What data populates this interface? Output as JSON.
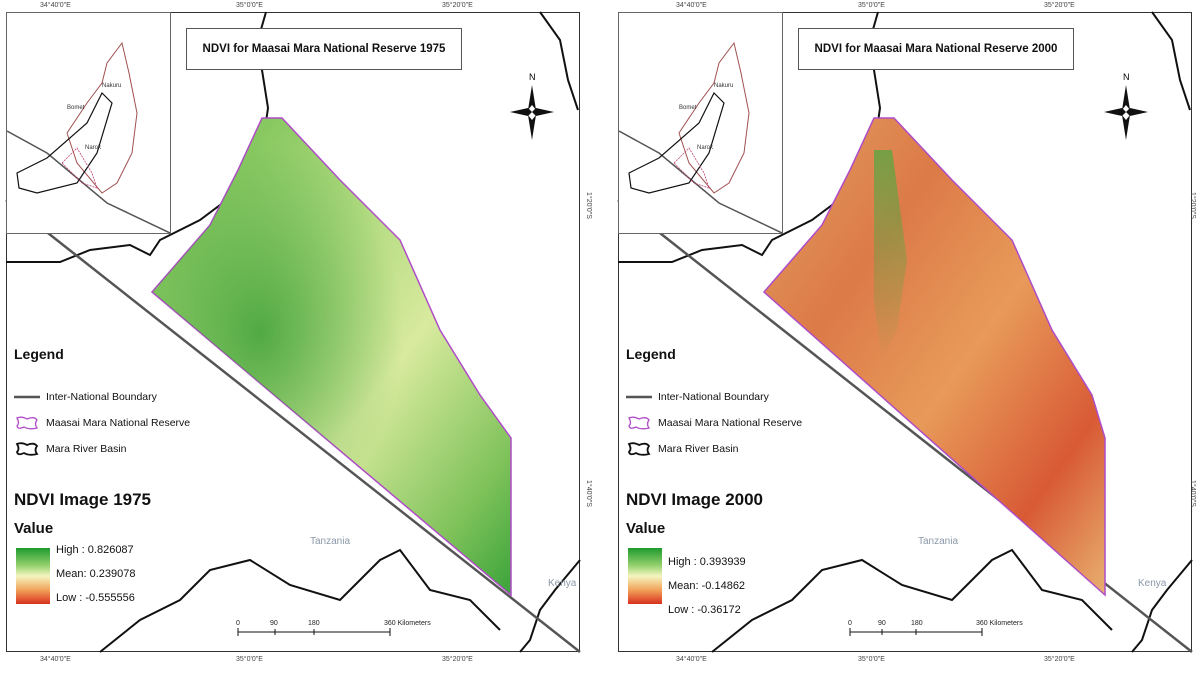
{
  "panels": [
    {
      "id": "left",
      "title": "NDVI for Maasai Mara National Reserve 1975",
      "coords_top": [
        "34°40'0\"E",
        "35°0'0\"E",
        "35°20'0\"E"
      ],
      "coords_bottom": [
        "34°40'0\"E",
        "35°0'0\"E",
        "35°20'0\"E"
      ],
      "coords_right": [
        "1°20'0\"S",
        "1°40'0\"S"
      ],
      "inset_labels": [
        "Nakuru",
        "Bomet",
        "Narok"
      ],
      "north_label": "N",
      "legend": {
        "title": "Legend",
        "items": [
          "Inter-National Boundary",
          "Maasai Mara National Reserve",
          "Mara River Basin"
        ]
      },
      "image_title": "NDVI Image 1975",
      "value_title": "Value",
      "ramp": {
        "high": "High : 0.826087",
        "mean": "Mean: 0.239078",
        "low": "Low : -0.555556"
      },
      "places": [
        "Tanzania",
        "Kenya"
      ],
      "scale": {
        "ticks": [
          "0",
          "90",
          "180",
          "360 Kilometers"
        ]
      },
      "palette": {
        "high": "#1e9a2e",
        "mid": "#eef3b4",
        "low": "#d7301f"
      },
      "dominant": "green"
    },
    {
      "id": "right",
      "title": "NDVI for Maasai Mara National Reserve 2000",
      "coords_top": [
        "34°40'0\"E",
        "35°0'0\"E",
        "35°20'0\"E"
      ],
      "coords_bottom": [
        "34°40'0\"E",
        "35°0'0\"E",
        "35°20'0\"E"
      ],
      "coords_right": [
        "1°20'0\"S",
        "1°40'0\"S"
      ],
      "inset_labels": [
        "Nakuru",
        "Bomet",
        "Narok"
      ],
      "north_label": "N",
      "legend": {
        "title": "Legend",
        "items": [
          "Inter-National Boundary",
          "Maasai Mara National Reserve",
          "Mara River Basin"
        ]
      },
      "image_title": "NDVI Image 2000",
      "value_title": "Value",
      "ramp": {
        "high": "High : 0.393939",
        "mean": "Mean: -0.14862",
        "low": "Low : -0.36172"
      },
      "places": [
        "Tanzania",
        "Kenya"
      ],
      "scale": {
        "ticks": [
          "0",
          "90",
          "180",
          "360 Kilometers"
        ]
      },
      "palette": {
        "high": "#1e9a2e",
        "mid": "#f2d88a",
        "low": "#d7301f"
      },
      "dominant": "red"
    }
  ]
}
